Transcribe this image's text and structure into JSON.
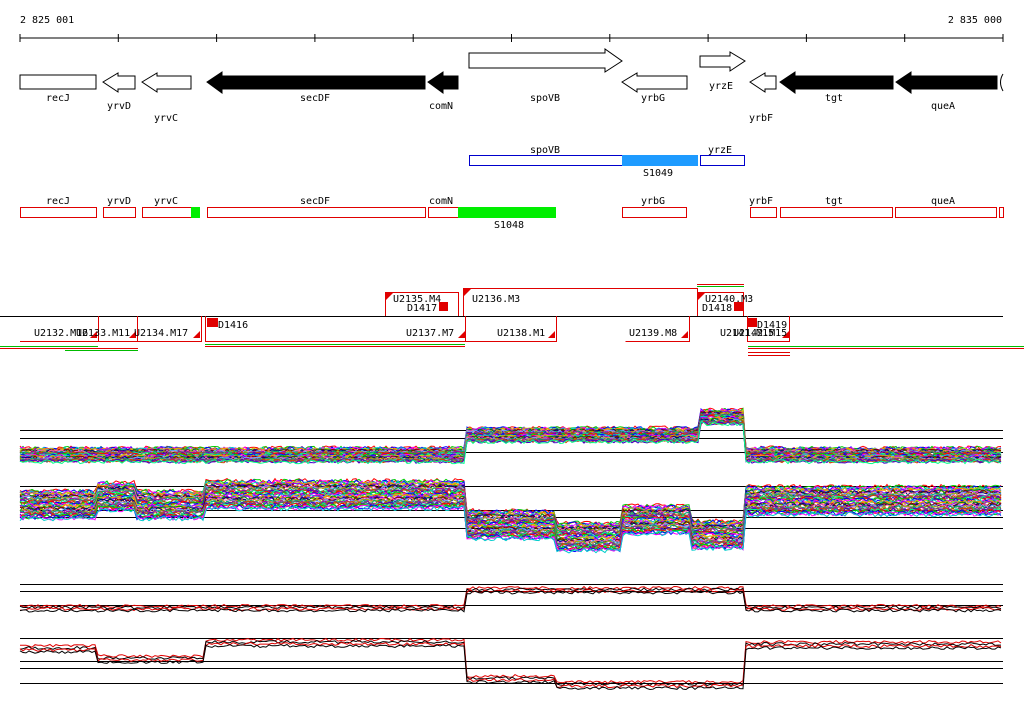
{
  "ruler": {
    "start": "2 825 001",
    "end": "2 835 000"
  },
  "genes": [
    {
      "id": "recJ",
      "label": "recJ"
    },
    {
      "id": "yrvD",
      "label": "yrvD"
    },
    {
      "id": "yrvC",
      "label": "yrvC"
    },
    {
      "id": "secDF",
      "label": "secDF"
    },
    {
      "id": "comN",
      "label": "comN"
    },
    {
      "id": "spoVB",
      "label": "spoVB"
    },
    {
      "id": "yrbG",
      "label": "yrbG"
    },
    {
      "id": "yrzE",
      "label": "yrzE"
    },
    {
      "id": "yrbF",
      "label": "yrbF"
    },
    {
      "id": "tgt",
      "label": "tgt"
    },
    {
      "id": "queA",
      "label": "queA"
    }
  ],
  "sense_track": {
    "labels": [
      "spoVB",
      "yrzE"
    ],
    "feature": "S1049"
  },
  "antisense_track": {
    "labels": [
      "recJ",
      "yrvD",
      "yrvC",
      "secDF",
      "comN",
      "yrbG",
      "yrbF",
      "tgt",
      "queA"
    ],
    "feature": "S1048"
  },
  "transcripts": [
    "U2132.M16",
    "U2133.M11",
    "U2134.M17",
    "D1416",
    "U2135.M4",
    "D1417",
    "U2136.M3",
    "U2137.M7",
    "U2138.M1",
    "U2139.M8",
    "U2140.M3",
    "D1418",
    "U2141.M15",
    "U2142.M15",
    "D1419"
  ],
  "colors": {
    "gene_solid": "#000000",
    "sense_feature": "#1e9bff",
    "antisense_feature": "#00ee00",
    "track_outline_red": "#e00000",
    "track_outline_blue": "#0000cc"
  }
}
